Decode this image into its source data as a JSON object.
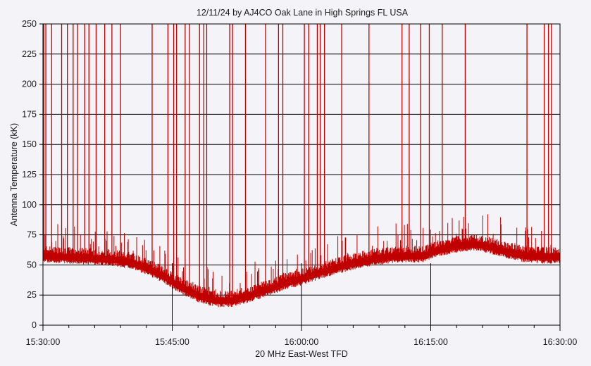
{
  "chart_data": {
    "type": "line",
    "title": "12/11/24  by  AJ4CO Oak Lane  in  High Springs FL USA",
    "xlabel": "20 MHz East-West TFD",
    "ylabel": "Antenna Temperature (kK)",
    "x_ticks": [
      "15:30:00",
      "15:45:00",
      "16:00:00",
      "16:15:00",
      "16:30:00"
    ],
    "x_range": [
      "15:30:00",
      "16:30:00"
    ],
    "y_ticks": [
      0,
      25,
      50,
      75,
      100,
      125,
      150,
      175,
      200,
      225,
      250
    ],
    "ylim": [
      0,
      250
    ],
    "grid": true,
    "series": [
      {
        "color": "#c00000",
        "baseline": [
          [
            "15:30:00",
            57
          ],
          [
            "15:33:00",
            56
          ],
          [
            "15:36:00",
            55
          ],
          [
            "15:38:00",
            54
          ],
          [
            "15:40:00",
            52
          ],
          [
            "15:42:00",
            47
          ],
          [
            "15:44:00",
            40
          ],
          [
            "15:46:00",
            31
          ],
          [
            "15:48:00",
            24
          ],
          [
            "15:50:00",
            20
          ],
          [
            "15:52:00",
            20
          ],
          [
            "15:54:00",
            24
          ],
          [
            "15:56:00",
            29
          ],
          [
            "15:58:00",
            34
          ],
          [
            "16:00:00",
            38
          ],
          [
            "16:02:00",
            43
          ],
          [
            "16:04:00",
            47
          ],
          [
            "16:06:00",
            51
          ],
          [
            "16:08:00",
            54
          ],
          [
            "16:10:00",
            56
          ],
          [
            "16:12:00",
            57
          ],
          [
            "16:14:00",
            57
          ],
          [
            "16:16:00",
            62
          ],
          [
            "16:18:00",
            65
          ],
          [
            "16:20:00",
            67
          ],
          [
            "16:22:00",
            64
          ],
          [
            "16:24:00",
            60
          ],
          [
            "16:26:00",
            57
          ],
          [
            "16:28:00",
            56
          ],
          [
            "16:30:00",
            56
          ]
        ],
        "spikes": [
          [
            "15:30:05",
            250
          ],
          [
            "15:30:20",
            250
          ],
          [
            "15:31:00",
            250
          ],
          [
            "15:32:10",
            250
          ],
          [
            "15:32:50",
            250
          ],
          [
            "15:33:30",
            250
          ],
          [
            "15:34:00",
            250
          ],
          [
            "15:34:50",
            250
          ],
          [
            "15:35:20",
            250
          ],
          [
            "15:36:10",
            250
          ],
          [
            "15:37:10",
            250
          ],
          [
            "15:38:00",
            250
          ],
          [
            "15:39:00",
            250
          ],
          [
            "15:42:40",
            250
          ],
          [
            "15:44:30",
            250
          ],
          [
            "15:45:10",
            250
          ],
          [
            "15:45:30",
            250
          ],
          [
            "15:46:30",
            250
          ],
          [
            "15:47:00",
            250
          ],
          [
            "15:48:10",
            250
          ],
          [
            "15:48:40",
            250
          ],
          [
            "15:49:00",
            250
          ],
          [
            "15:51:40",
            250
          ],
          [
            "15:52:00",
            250
          ],
          [
            "15:53:30",
            250
          ],
          [
            "15:55:50",
            250
          ],
          [
            "15:57:20",
            250
          ],
          [
            "15:57:50",
            250
          ],
          [
            "16:00:20",
            250
          ],
          [
            "16:00:50",
            250
          ],
          [
            "16:01:50",
            250
          ],
          [
            "16:02:10",
            250
          ],
          [
            "16:02:40",
            250
          ],
          [
            "16:04:40",
            250
          ],
          [
            "16:07:50",
            250
          ],
          [
            "16:11:40",
            250
          ],
          [
            "16:12:30",
            250
          ],
          [
            "16:13:50",
            250
          ],
          [
            "16:14:50",
            250
          ],
          [
            "16:16:20",
            250
          ],
          [
            "16:19:00",
            250
          ],
          [
            "16:26:10",
            250
          ],
          [
            "16:28:10",
            250
          ],
          [
            "16:28:40",
            250
          ],
          [
            "16:29:00",
            250
          ]
        ]
      }
    ]
  }
}
